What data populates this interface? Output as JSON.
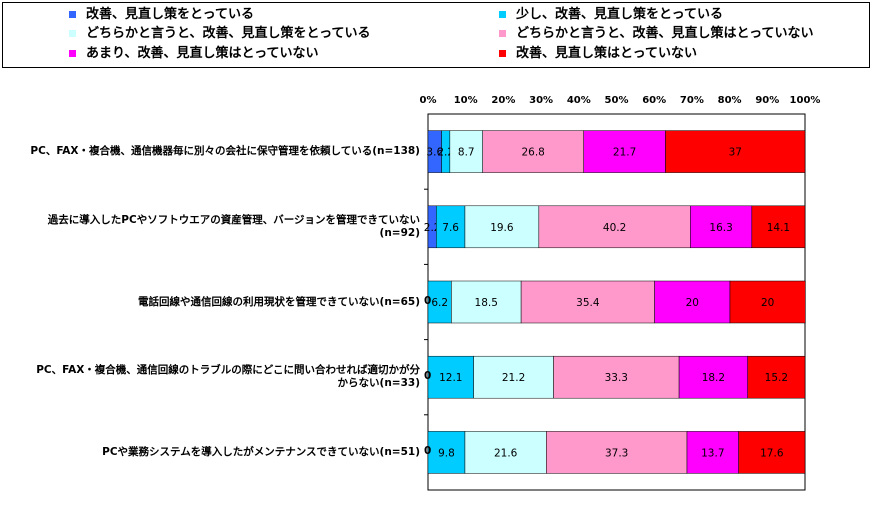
{
  "chart_data": {
    "type": "bar",
    "orientation": "horizontal",
    "stacked": "100%",
    "legend_position": "top",
    "x_ticks": [
      "0%",
      "10%",
      "20%",
      "30%",
      "40%",
      "50%",
      "60%",
      "70%",
      "80%",
      "90%",
      "100%"
    ],
    "xlim": [
      0,
      100
    ],
    "series": [
      {
        "name": "改善、見直し策をとっている",
        "color": "#3366ff",
        "values": [
          3.6,
          2.2,
          0,
          0,
          0
        ],
        "labels": [
          "3.6",
          "2.2",
          "0",
          "0",
          "0"
        ]
      },
      {
        "name": "少し、改善、見直し策をとっている",
        "color": "#00ccff",
        "values": [
          2.2,
          7.6,
          6.2,
          12.1,
          9.8
        ],
        "labels": [
          "2.2",
          "7.6",
          "6.2",
          "12.1",
          "9.8"
        ]
      },
      {
        "name": "どちらかと言うと、改善、見直し策をとっている",
        "color": "#ccffff",
        "values": [
          8.7,
          19.6,
          18.5,
          21.2,
          21.6
        ],
        "labels": [
          "8.7",
          "19.6",
          "18.5",
          "21.2",
          "21.6"
        ]
      },
      {
        "name": "どちらかと言うと、改善、見直し策はとっていない",
        "color": "#ff99cc",
        "values": [
          26.8,
          40.2,
          35.4,
          33.3,
          37.3
        ],
        "labels": [
          "26.8",
          "40.2",
          "35.4",
          "33.3",
          "37.3"
        ]
      },
      {
        "name": "あまり、改善、見直し策はとっていない",
        "color": "#ff00ff",
        "values": [
          21.7,
          16.3,
          20,
          18.2,
          13.7
        ],
        "labels": [
          "21.7",
          "16.3",
          "20",
          "18.2",
          "13.7"
        ]
      },
      {
        "name": "改善、見直し策はとっていない",
        "color": "#ff0000",
        "values": [
          37,
          14.1,
          20,
          15.2,
          17.6
        ],
        "labels": [
          "37",
          "14.1",
          "20",
          "15.2",
          "17.6"
        ]
      }
    ],
    "categories": [
      "PC、FAX・複合機、通信機器毎に別々の会社に保守管理を依頼している(n=138)",
      "過去に導入したPCやソフトウエアの資産管理、バージョンを管理できていない(n=92)",
      "電話回線や通信回線の利用現状を管理できていない(n=65)",
      "PC、FAX・複合機、通信回線のトラブルの際にどこに問い合わせれば適切かが分からない(n=33)",
      "PCや業務システムを導入したがメンテナンスできていない(n=51)"
    ]
  }
}
